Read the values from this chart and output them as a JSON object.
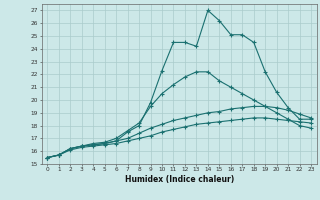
{
  "title": "",
  "xlabel": "Humidex (Indice chaleur)",
  "bg_color": "#cce8e8",
  "line_color": "#1a7070",
  "grid_color": "#aacccc",
  "xlim": [
    -0.5,
    23.5
  ],
  "ylim": [
    15,
    27.5
  ],
  "yticks": [
    15,
    16,
    17,
    18,
    19,
    20,
    21,
    22,
    23,
    24,
    25,
    26,
    27
  ],
  "xticks": [
    0,
    1,
    2,
    3,
    4,
    5,
    6,
    7,
    8,
    9,
    10,
    11,
    12,
    13,
    14,
    15,
    16,
    17,
    18,
    19,
    20,
    21,
    22,
    23
  ],
  "line1_x": [
    0,
    1,
    2,
    3,
    4,
    5,
    6,
    7,
    8,
    9,
    10,
    11,
    12,
    13,
    14,
    15,
    16,
    17,
    18,
    19,
    20,
    21,
    22,
    23
  ],
  "line1_y": [
    15.5,
    15.7,
    16.2,
    16.4,
    16.5,
    16.6,
    16.8,
    17.5,
    18.0,
    19.8,
    22.3,
    24.5,
    24.5,
    24.2,
    27.0,
    26.2,
    25.1,
    25.1,
    24.5,
    22.2,
    20.6,
    19.4,
    18.5,
    18.5
  ],
  "line2_x": [
    0,
    1,
    2,
    3,
    4,
    5,
    6,
    7,
    8,
    9,
    10,
    11,
    12,
    13,
    14,
    15,
    16,
    17,
    18,
    19,
    20,
    21,
    22,
    23
  ],
  "line2_y": [
    15.5,
    15.7,
    16.2,
    16.4,
    16.6,
    16.7,
    17.0,
    17.6,
    18.2,
    19.5,
    20.5,
    21.2,
    21.8,
    22.2,
    22.2,
    21.5,
    21.0,
    20.5,
    20.0,
    19.5,
    19.0,
    18.5,
    18.0,
    17.8
  ],
  "line3_x": [
    0,
    1,
    2,
    3,
    4,
    5,
    6,
    7,
    8,
    9,
    10,
    11,
    12,
    13,
    14,
    15,
    16,
    17,
    18,
    19,
    20,
    21,
    22,
    23
  ],
  "line3_y": [
    15.5,
    15.7,
    16.2,
    16.4,
    16.5,
    16.6,
    16.8,
    17.0,
    17.4,
    17.8,
    18.1,
    18.4,
    18.6,
    18.8,
    19.0,
    19.1,
    19.3,
    19.4,
    19.5,
    19.5,
    19.4,
    19.2,
    18.9,
    18.6
  ],
  "line4_x": [
    0,
    1,
    2,
    3,
    4,
    5,
    6,
    7,
    8,
    9,
    10,
    11,
    12,
    13,
    14,
    15,
    16,
    17,
    18,
    19,
    20,
    21,
    22,
    23
  ],
  "line4_y": [
    15.5,
    15.7,
    16.1,
    16.3,
    16.4,
    16.5,
    16.6,
    16.8,
    17.0,
    17.2,
    17.5,
    17.7,
    17.9,
    18.1,
    18.2,
    18.3,
    18.4,
    18.5,
    18.6,
    18.6,
    18.5,
    18.4,
    18.3,
    18.2
  ]
}
